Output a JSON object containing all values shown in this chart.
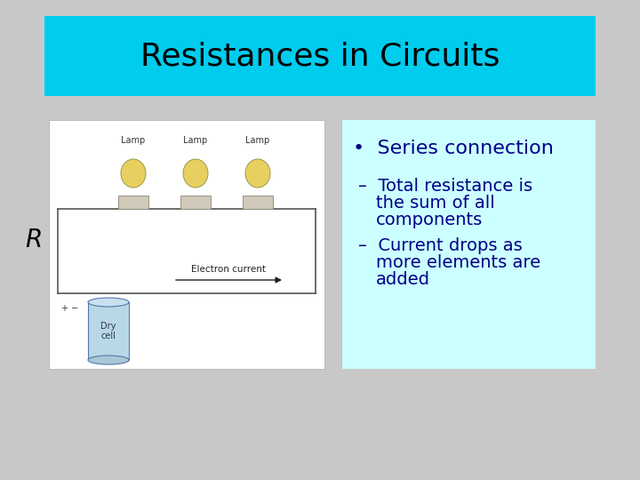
{
  "title": "Resistances in Circuits",
  "title_bg_color": "#00CCEE",
  "slide_bg_color": "#C8C8C8",
  "content_box_color": "#CCFFFF",
  "bullet_text": "Series connection",
  "bullet_color": "#000088",
  "sub_bullet_1_line1": "Total resistance is",
  "sub_bullet_1_line2": "the sum of all",
  "sub_bullet_1_line3": "components",
  "sub_bullet_2_line1": "Current drops as",
  "sub_bullet_2_line2": "more elements are",
  "sub_bullet_2_line3": "added",
  "sub_bullet_color": "#000088",
  "italic_label": "R",
  "title_fontsize": 26,
  "bullet_fontsize": 16,
  "sub_bullet_fontsize": 14,
  "title_text_color": "#000000"
}
